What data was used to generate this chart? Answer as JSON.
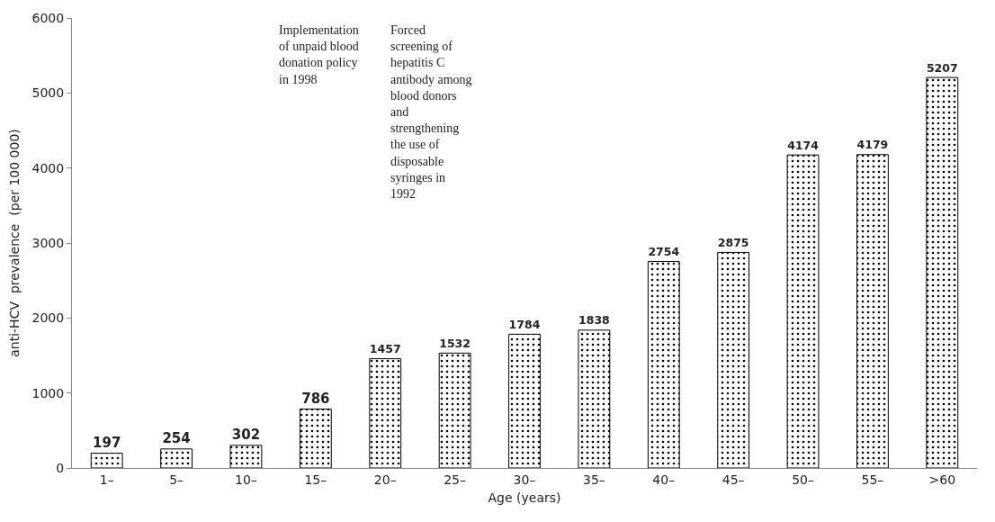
{
  "chart_data": {
    "type": "bar",
    "xlabel": "Age (years)",
    "ylabel": "anti-HCV  prevalence  (per 100 000)",
    "categories": [
      "1–",
      "5–",
      "10–",
      "15–",
      "20–",
      "25–",
      "30–",
      "35–",
      "40–",
      "45–",
      "50–",
      "55–",
      ">60"
    ],
    "values": [
      197,
      254,
      302,
      786,
      1457,
      1532,
      1784,
      1838,
      2754,
      2875,
      4174,
      4179,
      5207
    ],
    "color": "#000000",
    "data_labels": true,
    "grid": false,
    "ylim": [
      0,
      6000
    ],
    "yticks": [
      0,
      1000,
      2000,
      3000,
      4000,
      5000,
      6000
    ],
    "annotations": [
      "Implementation of unpaid blood donation policy in 1998",
      "Forced screening of hepatitis C antibody among blood donors and strengthening the use of disposable syringes in 1992"
    ]
  }
}
